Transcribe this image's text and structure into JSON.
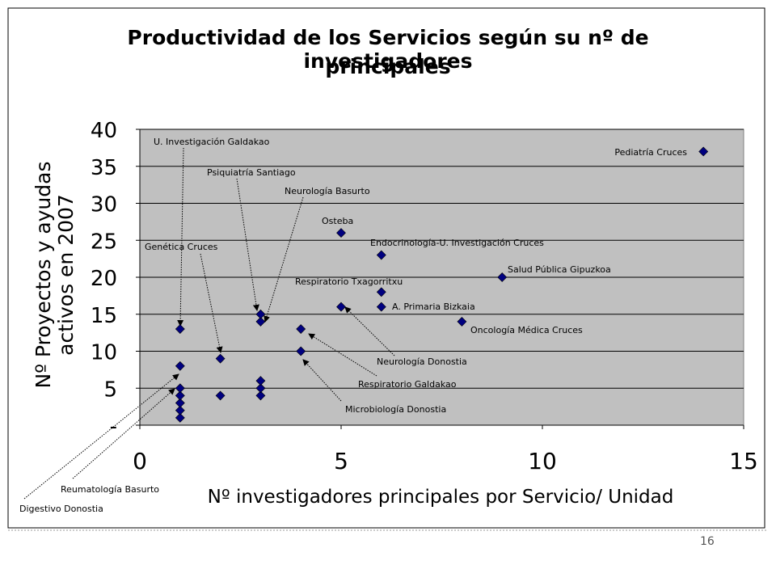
{
  "title": {
    "line1": "Productividad de los Servicios según su nº de investigadores",
    "line2": "principales"
  },
  "page_number": "16",
  "colors": {
    "plot_background": "#c0c0c0",
    "marker": "#000080",
    "gridline": "#000000"
  },
  "chart_data": {
    "type": "scatter",
    "title": "Productividad de los Servicios según su nº de investigadores principales",
    "xlabel": "Nº investigadores principales por Servicio/ Unidad",
    "ylabel": "Nº Proyectos y ayudas activos en 2007",
    "xlim": [
      0,
      15
    ],
    "ylim": [
      0,
      40
    ],
    "x_ticks": [
      "0",
      "5",
      "10",
      "15"
    ],
    "y_ticks": [
      "-",
      "5",
      "10",
      "15",
      "20",
      "25",
      "30",
      "35",
      "40"
    ],
    "grid": "horizontal",
    "marker": "diamond",
    "points": [
      {
        "x": 1,
        "y": 1
      },
      {
        "x": 1,
        "y": 2
      },
      {
        "x": 1,
        "y": 3
      },
      {
        "x": 1,
        "y": 4
      },
      {
        "x": 1,
        "y": 5
      },
      {
        "x": 1,
        "y": 8
      },
      {
        "x": 1,
        "y": 13
      },
      {
        "x": 2,
        "y": 4
      },
      {
        "x": 2,
        "y": 9
      },
      {
        "x": 3,
        "y": 4
      },
      {
        "x": 3,
        "y": 5
      },
      {
        "x": 3,
        "y": 6
      },
      {
        "x": 3,
        "y": 14
      },
      {
        "x": 3,
        "y": 15
      },
      {
        "x": 4,
        "y": 10
      },
      {
        "x": 4,
        "y": 13
      },
      {
        "x": 5,
        "y": 16
      },
      {
        "x": 5,
        "y": 26
      },
      {
        "x": 6,
        "y": 16
      },
      {
        "x": 6,
        "y": 18
      },
      {
        "x": 6,
        "y": 23
      },
      {
        "x": 8,
        "y": 14
      },
      {
        "x": 9,
        "y": 20
      },
      {
        "x": 14,
        "y": 37
      }
    ],
    "annotations": [
      {
        "text": "U. Investigación Galdakao",
        "x": 1,
        "y": 13
      },
      {
        "text": "Psiquiatría Santiago",
        "x": 3,
        "y": 15
      },
      {
        "text": "Neurología Basurto",
        "x": 3,
        "y": 14
      },
      {
        "text": "Osteba",
        "x": 5,
        "y": 26
      },
      {
        "text": "Genética Cruces",
        "x": 2,
        "y": 9
      },
      {
        "text": "Endocrinología-U. Investigación Cruces",
        "x": 6,
        "y": 23
      },
      {
        "text": "Salud Pública Gipuzkoa",
        "x": 9,
        "y": 20
      },
      {
        "text": "Respiratorio Txagorritxu",
        "x": 6,
        "y": 18
      },
      {
        "text": "A. Primaria Bizkaia",
        "x": 6,
        "y": 16
      },
      {
        "text": "Oncología Médica Cruces",
        "x": 8,
        "y": 14
      },
      {
        "text": "Neurología Donostia",
        "x": 5,
        "y": 16
      },
      {
        "text": "Respiratorio Galdakao",
        "x": 4,
        "y": 13
      },
      {
        "text": "Microbiología Donostia",
        "x": 4,
        "y": 10
      },
      {
        "text": "Pediatría Cruces",
        "x": 14,
        "y": 37
      },
      {
        "text": "Reumatología Basurto",
        "x": 1,
        "y": 5
      },
      {
        "text": "Digestivo Donostia",
        "x": 1,
        "y": 8
      }
    ]
  }
}
